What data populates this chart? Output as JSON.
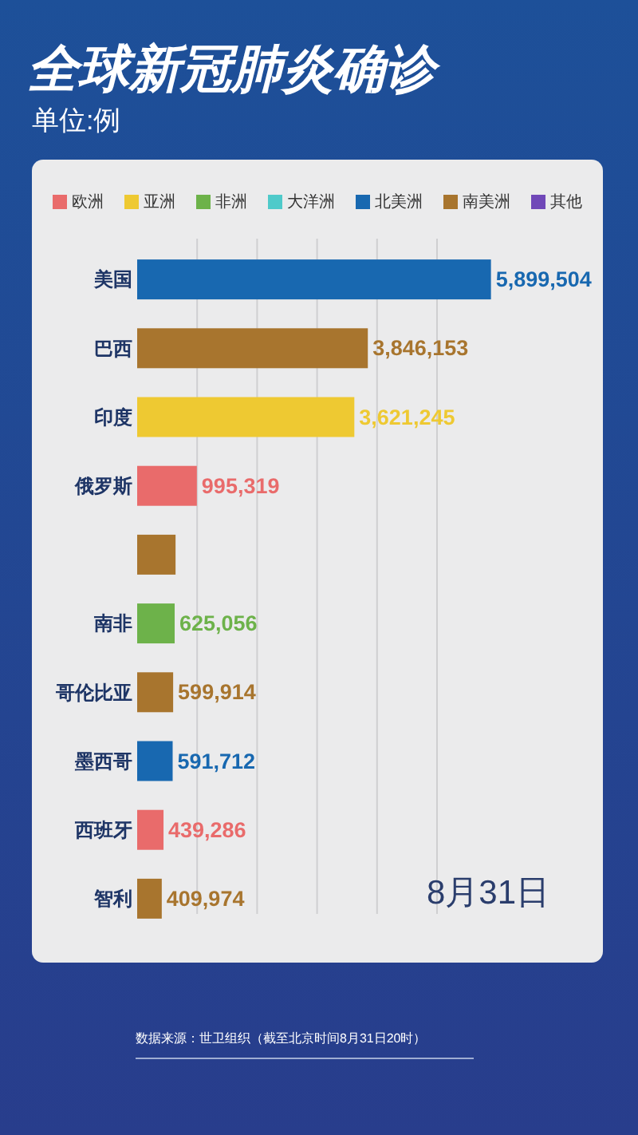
{
  "chart_data": {
    "type": "bar",
    "orientation": "horizontal",
    "title": "全球新冠肺炎确诊",
    "subtitle": "单位:例",
    "categories": [
      "美国",
      "巴西",
      "印度",
      "俄罗斯",
      null,
      "南非",
      "哥伦比亚",
      "墨西哥",
      "西班牙",
      "智利"
    ],
    "series": [
      {
        "name": "欧洲",
        "color": "#e96b6b",
        "values": [
          null,
          null,
          null,
          995319,
          null,
          null,
          null,
          null,
          439286,
          null
        ],
        "value_labels": [
          null,
          null,
          null,
          "995,319",
          null,
          null,
          null,
          null,
          "439,286",
          null
        ]
      },
      {
        "name": "亚洲",
        "color": "#eec932",
        "values": [
          null,
          null,
          3621245,
          null,
          null,
          null,
          null,
          null,
          null,
          null
        ],
        "value_labels": [
          null,
          null,
          "3,621,245",
          null,
          null,
          null,
          null,
          null,
          null,
          null
        ]
      },
      {
        "name": "非洲",
        "color": "#6db24a",
        "values": [
          null,
          null,
          null,
          null,
          null,
          625056,
          null,
          null,
          null,
          null
        ],
        "value_labels": [
          null,
          null,
          null,
          null,
          null,
          "625,056",
          null,
          null,
          null,
          null
        ]
      },
      {
        "name": "大洋洲",
        "color": "#4fcaca",
        "values": [
          null,
          null,
          null,
          null,
          null,
          null,
          null,
          null,
          null,
          null
        ]
      },
      {
        "name": "北美洲",
        "color": "#1868b0",
        "values": [
          5899504,
          null,
          null,
          null,
          null,
          null,
          null,
          591712,
          null,
          null
        ],
        "value_labels": [
          "5,899,504",
          null,
          null,
          null,
          null,
          null,
          null,
          "591,712",
          null,
          null
        ]
      },
      {
        "name": "南美洲",
        "color": "#a8752e",
        "values": [
          null,
          3846153,
          null,
          null,
          640000,
          null,
          599914,
          null,
          null,
          409974
        ],
        "value_labels": [
          null,
          "3,846,153",
          null,
          null,
          null,
          null,
          "599,914",
          null,
          null,
          "409,974"
        ]
      },
      {
        "name": "其他",
        "color": "#7048b8",
        "values": [
          null,
          null,
          null,
          null,
          null,
          null,
          null,
          null,
          null,
          null
        ]
      }
    ],
    "xticks": [
      {
        "value": 1000000,
        "label": null
      },
      {
        "value": 2000000,
        "label": null
      },
      {
        "value": 3000000,
        "label": null
      },
      {
        "value": 4000000,
        "label": null
      },
      {
        "value": 5000000,
        "label": null
      }
    ],
    "grid": "x",
    "legend": "top",
    "tick_labels": "y",
    "annotations": [
      "8月31日",
      "数据来源：世卫组织（截至北京时间8月31日20时）"
    ]
  }
}
